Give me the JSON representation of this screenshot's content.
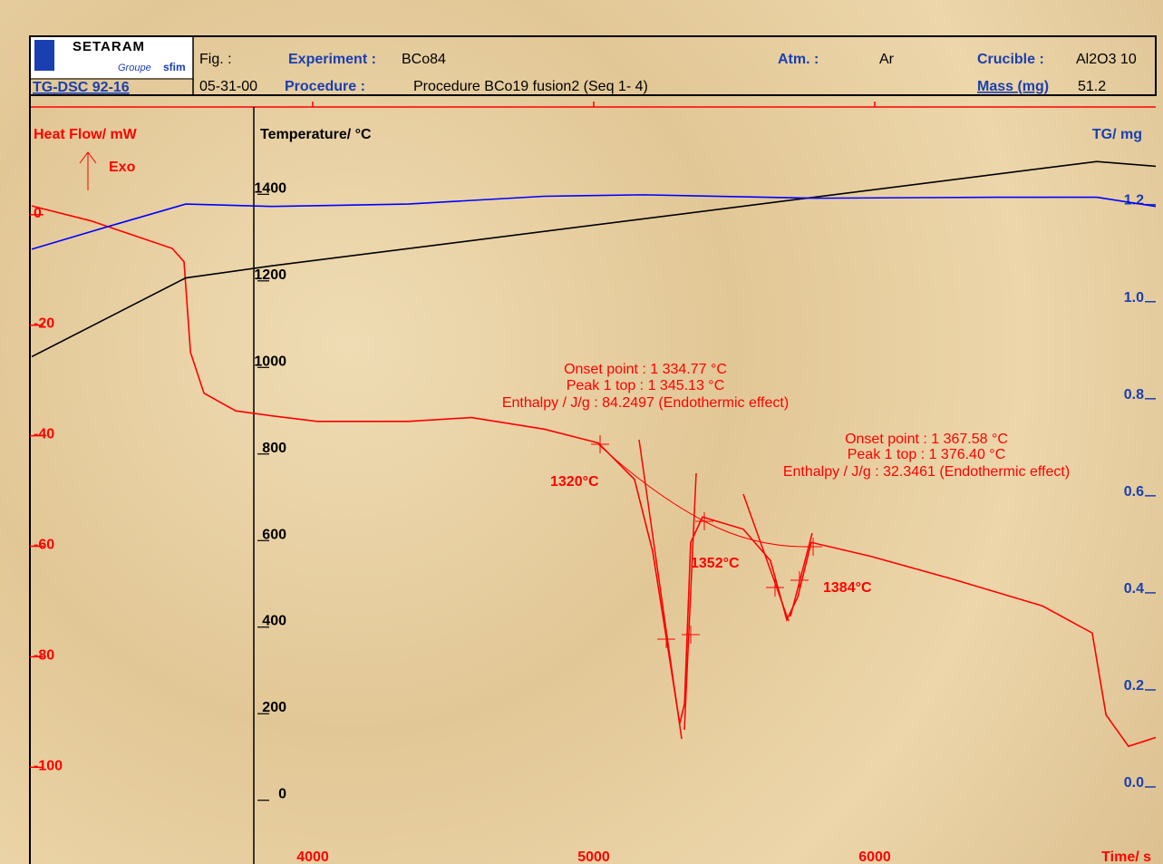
{
  "header": {
    "brand": "SETARAM",
    "group": "Groupe",
    "group_mark": "sfim",
    "instrument": "TG-DSC 92-16",
    "fig_label": "Fig. :",
    "date": "05-31-00",
    "experiment_label": "Experiment :",
    "experiment": "BCo84",
    "procedure_label": "Procedure :",
    "procedure": "Procedure BCo19 fusion2 (Seq  1-  4)",
    "atm_label": "Atm. :",
    "atm": "Ar",
    "crucible_label": "Crucible :",
    "crucible": "Al2O3 10",
    "mass_label": "Mass (mg)",
    "mass": "51.2"
  },
  "chart_data": {
    "type": "line",
    "ylabel": "Heat Flow/ mW",
    "exo_label": "Exo",
    "y2label": "Temperature/ °C",
    "y3label": "TG/ mg",
    "xlabel": "Time/ s",
    "xlim": [
      3000,
      7000
    ],
    "xticks": [
      4000,
      5000,
      6000
    ],
    "ylim": [
      -118,
      19
    ],
    "yticks": [
      0,
      -20,
      -40,
      -60,
      -80,
      -100
    ],
    "y2lim": [
      -164,
      1585
    ],
    "y2ticks": [
      1400,
      1200,
      1000,
      800,
      600,
      400,
      200,
      0
    ],
    "y3lim": [
      -0.17,
      1.39
    ],
    "y3ticks": [
      {
        "value": 1.2,
        "label": "1.2"
      },
      {
        "value": 1.0,
        "label": "1.0"
      },
      0.8,
      0.6,
      0.4,
      0.2,
      {
        "value": 0.0,
        "label": "0.0"
      }
    ],
    "series": [
      {
        "name": "Heat Flow",
        "color": "#ff0000",
        "axis": "y",
        "x": [
          3000,
          3210,
          3500,
          3542,
          3565,
          3613,
          3726,
          3855,
          4016,
          4339,
          4565,
          4823,
          5016,
          5145,
          5210,
          5258,
          5306,
          5323,
          5345,
          5387,
          5532,
          5629,
          5687,
          5726,
          5774,
          5984,
          6274,
          6597,
          6774,
          6823,
          6903,
          7000
        ],
        "values": [
          1.1,
          -1.6,
          -6.6,
          -9,
          -25.4,
          -32.8,
          -36,
          -36.9,
          -37.9,
          -37.9,
          -37.2,
          -39.3,
          -41.8,
          -48.4,
          -61.5,
          -77,
          -92.6,
          -89,
          -59.8,
          -55.2,
          -57.4,
          -63.1,
          -73.8,
          -69.7,
          -59.8,
          -62.3,
          -66.4,
          -71.3,
          -76.2,
          -91,
          -96.7,
          -95.1
        ]
      },
      {
        "name": "Temperature",
        "color": "#000000",
        "axis": "y2",
        "x": [
          3000,
          3548,
          3855,
          6790,
          7000
        ],
        "values": [
          1008,
          1190,
          1218,
          1459,
          1448
        ]
      },
      {
        "name": "TG",
        "color": "#0000ff",
        "axis": "y3",
        "x": [
          3000,
          3274,
          3548,
          3855,
          4339,
          4823,
          5177,
          5790,
          6435,
          6790,
          7000
        ],
        "values": [
          1.097,
          1.144,
          1.19,
          1.185,
          1.19,
          1.206,
          1.209,
          1.202,
          1.204,
          1.204,
          1.185
        ]
      }
    ],
    "annotations": [
      "Onset point : 1 334.77  °C",
      "Peak 1 top : 1 345.13  °C",
      "Enthalpy / J/g : 84.2497 (Endothermic effect)",
      "Onset point : 1 367.58  °C",
      "Peak 1 top : 1 376.40  °C",
      "Enthalpy / J/g : 32.3461 (Endothermic effect)",
      "1320°C",
      "1352°C",
      "1384°C"
    ]
  }
}
